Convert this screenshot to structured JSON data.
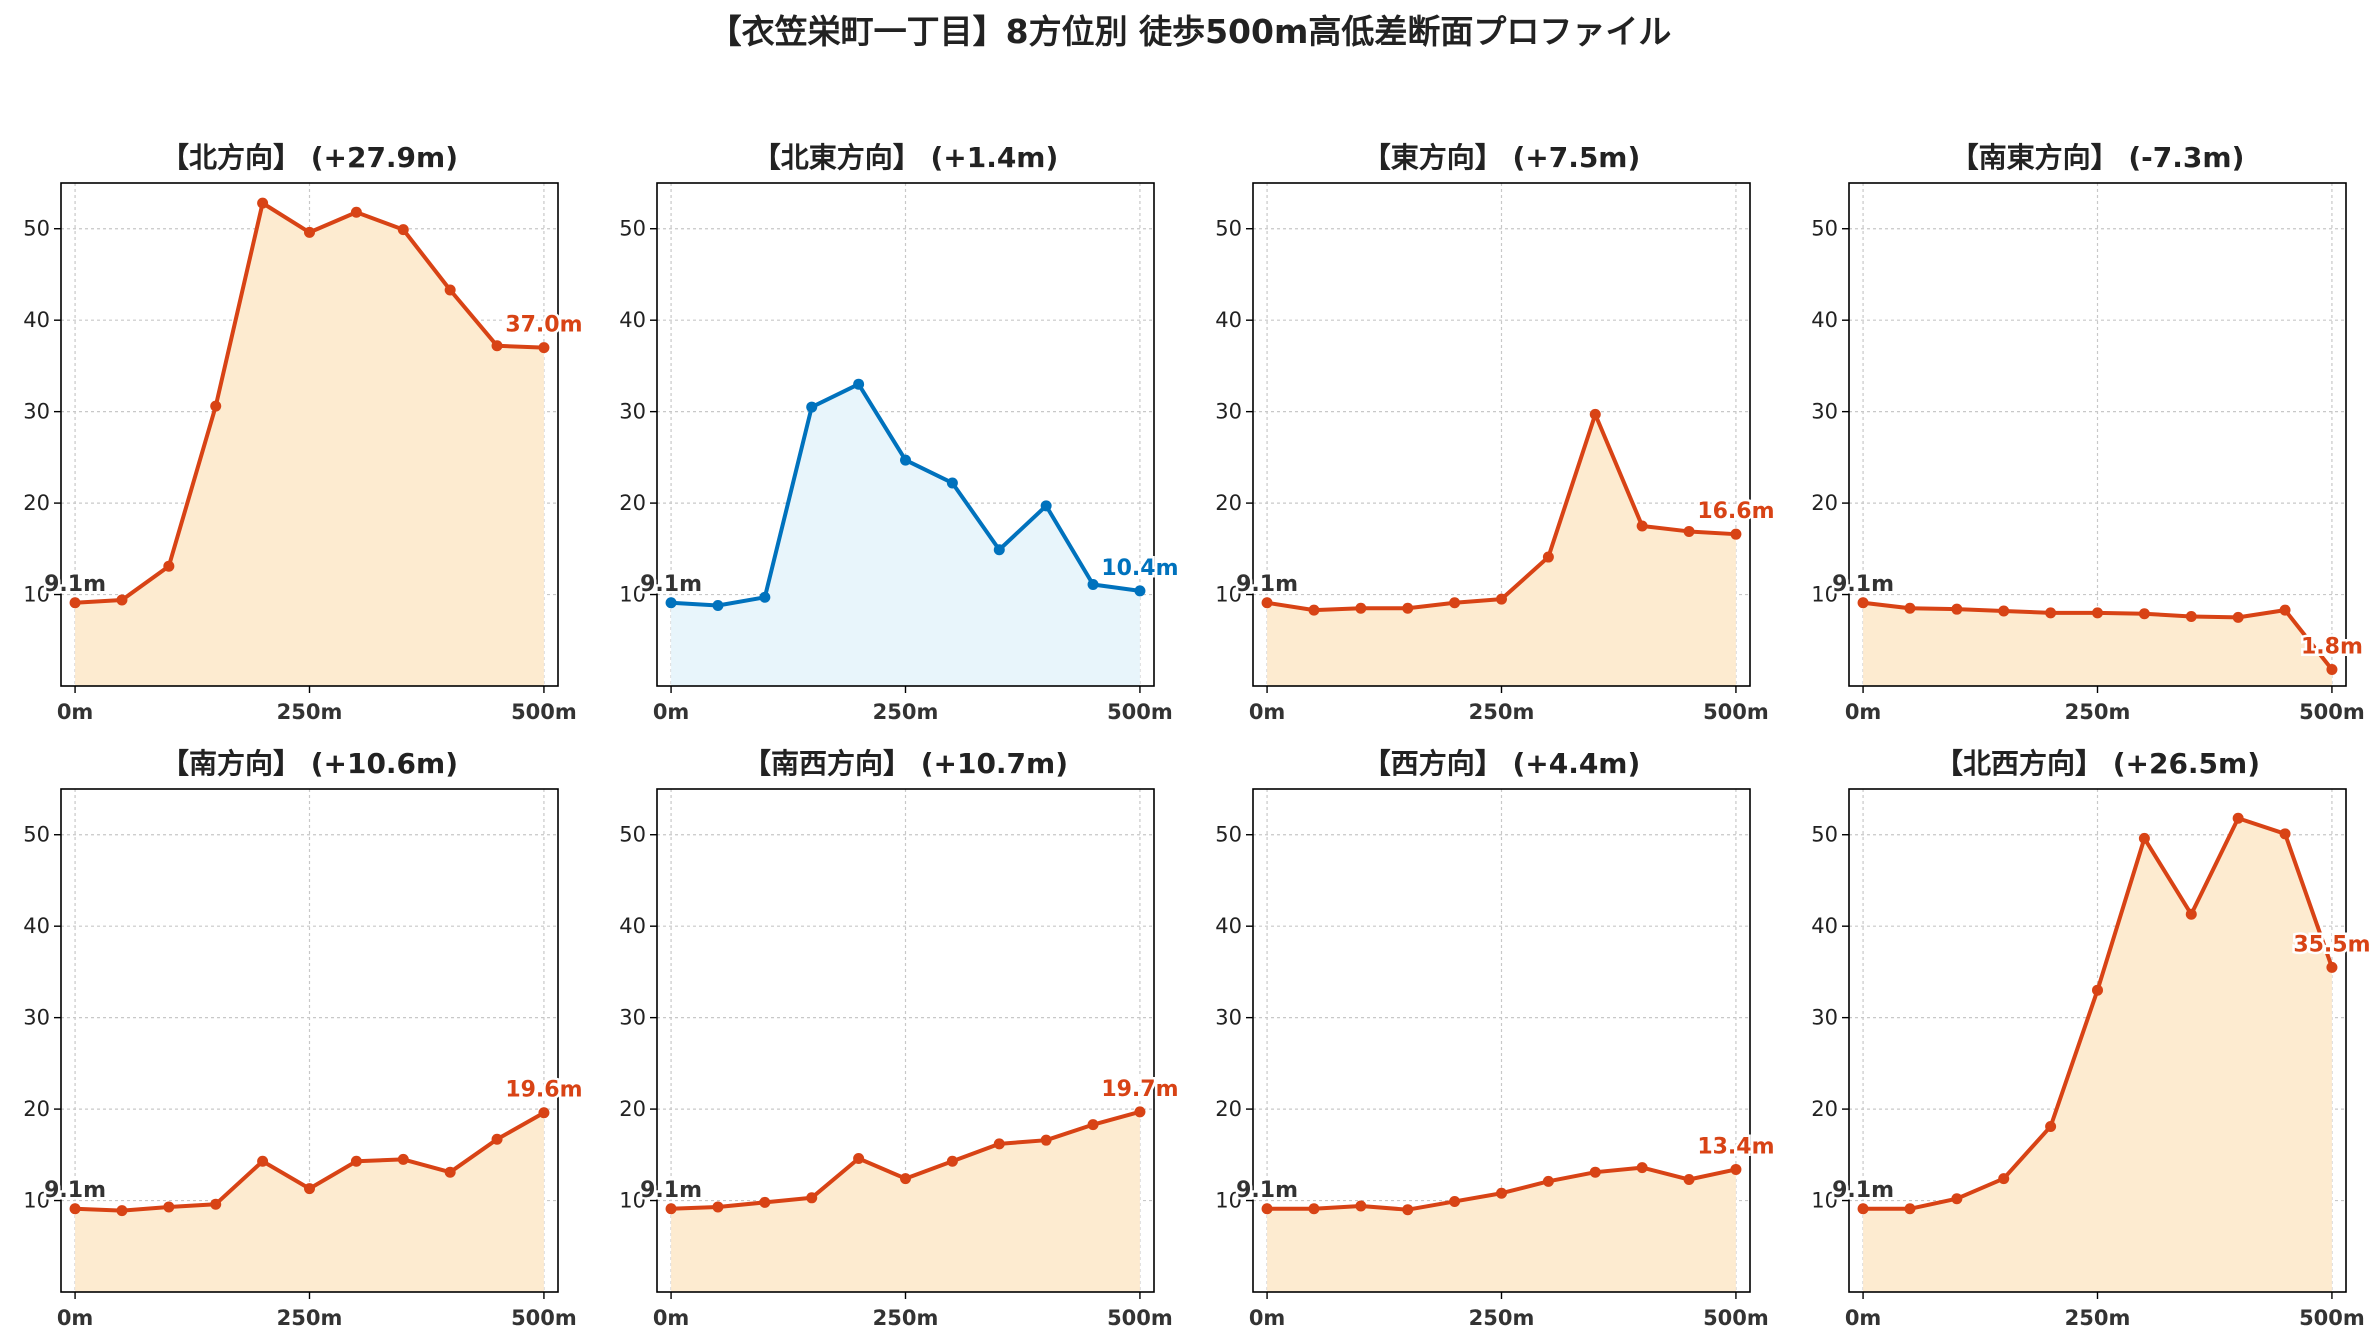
{
  "title": "【衣笠栄町一丁目】8方位別 徒歩500m高低差断面プロファイル",
  "colors": {
    "uphill_line": "#d84315",
    "uphill_fill": "#fdebd0",
    "downhill_line": "#0072bd",
    "downhill_fill": "#e8f5fb",
    "start_label": "#333333"
  },
  "chart_data": [
    {
      "type": "area",
      "title": "【北方向】 (+27.9m)",
      "style": "uphill",
      "x": [
        0,
        50,
        100,
        150,
        200,
        250,
        300,
        350,
        400,
        450,
        500
      ],
      "y": [
        9.1,
        9.4,
        13.1,
        30.6,
        52.8,
        49.6,
        51.8,
        49.9,
        43.3,
        37.2,
        37.0
      ],
      "start_label": "9.1m",
      "end_label": "37.0m",
      "xticks": [
        0,
        250,
        500
      ],
      "xtick_labels": [
        "0m",
        "250m",
        "500m"
      ],
      "yticks": [
        10,
        20,
        30,
        40,
        50
      ],
      "ylim": [
        0,
        55
      ],
      "xlim": [
        -15,
        515
      ],
      "grid": true
    },
    {
      "type": "area",
      "title": "【北東方向】 (+1.4m)",
      "style": "downhill",
      "x": [
        0,
        50,
        100,
        150,
        200,
        250,
        300,
        350,
        400,
        450,
        500
      ],
      "y": [
        9.1,
        8.8,
        9.7,
        30.5,
        33.0,
        24.7,
        22.2,
        14.9,
        19.7,
        11.1,
        10.4
      ],
      "start_label": "9.1m",
      "end_label": "10.4m",
      "xticks": [
        0,
        250,
        500
      ],
      "xtick_labels": [
        "0m",
        "250m",
        "500m"
      ],
      "yticks": [
        10,
        20,
        30,
        40,
        50
      ],
      "ylim": [
        0,
        55
      ],
      "xlim": [
        -15,
        515
      ],
      "grid": true
    },
    {
      "type": "area",
      "title": "【東方向】 (+7.5m)",
      "style": "uphill",
      "x": [
        0,
        50,
        100,
        150,
        200,
        250,
        300,
        350,
        400,
        450,
        500
      ],
      "y": [
        9.1,
        8.3,
        8.5,
        8.5,
        9.1,
        9.5,
        14.1,
        29.7,
        17.5,
        16.9,
        16.6
      ],
      "start_label": "9.1m",
      "end_label": "16.6m",
      "xticks": [
        0,
        250,
        500
      ],
      "xtick_labels": [
        "0m",
        "250m",
        "500m"
      ],
      "yticks": [
        10,
        20,
        30,
        40,
        50
      ],
      "ylim": [
        0,
        55
      ],
      "xlim": [
        -15,
        515
      ],
      "grid": true
    },
    {
      "type": "area",
      "title": "【南東方向】 (-7.3m)",
      "style": "uphill",
      "x": [
        0,
        50,
        100,
        150,
        200,
        250,
        300,
        350,
        400,
        450,
        500
      ],
      "y": [
        9.1,
        8.5,
        8.4,
        8.2,
        8.0,
        8.0,
        7.9,
        7.6,
        7.5,
        8.3,
        1.8
      ],
      "start_label": "9.1m",
      "end_label": "1.8m",
      "xticks": [
        0,
        250,
        500
      ],
      "xtick_labels": [
        "0m",
        "250m",
        "500m"
      ],
      "yticks": [
        10,
        20,
        30,
        40,
        50
      ],
      "ylim": [
        0,
        55
      ],
      "xlim": [
        -15,
        515
      ],
      "grid": true
    },
    {
      "type": "area",
      "title": "【南方向】 (+10.6m)",
      "style": "uphill",
      "x": [
        0,
        50,
        100,
        150,
        200,
        250,
        300,
        350,
        400,
        450,
        500
      ],
      "y": [
        9.1,
        8.9,
        9.3,
        9.6,
        14.3,
        11.3,
        14.3,
        14.5,
        13.1,
        16.7,
        19.6
      ],
      "start_label": "9.1m",
      "end_label": "19.6m",
      "xticks": [
        0,
        250,
        500
      ],
      "xtick_labels": [
        "0m",
        "250m",
        "500m"
      ],
      "yticks": [
        10,
        20,
        30,
        40,
        50
      ],
      "ylim": [
        0,
        55
      ],
      "xlim": [
        -15,
        515
      ],
      "grid": true
    },
    {
      "type": "area",
      "title": "【南西方向】 (+10.7m)",
      "style": "uphill",
      "x": [
        0,
        50,
        100,
        150,
        200,
        250,
        300,
        350,
        400,
        450,
        500
      ],
      "y": [
        9.1,
        9.3,
        9.8,
        10.3,
        14.6,
        12.4,
        14.3,
        16.2,
        16.6,
        18.3,
        19.7
      ],
      "start_label": "9.1m",
      "end_label": "19.7m",
      "xticks": [
        0,
        250,
        500
      ],
      "xtick_labels": [
        "0m",
        "250m",
        "500m"
      ],
      "yticks": [
        10,
        20,
        30,
        40,
        50
      ],
      "ylim": [
        0,
        55
      ],
      "xlim": [
        -15,
        515
      ],
      "grid": true
    },
    {
      "type": "area",
      "title": "【西方向】 (+4.4m)",
      "style": "uphill",
      "x": [
        0,
        50,
        100,
        150,
        200,
        250,
        300,
        350,
        400,
        450,
        500
      ],
      "y": [
        9.1,
        9.1,
        9.4,
        9.0,
        9.9,
        10.8,
        12.1,
        13.1,
        13.6,
        12.3,
        13.4
      ],
      "start_label": "9.1m",
      "end_label": "13.4m",
      "xticks": [
        0,
        250,
        500
      ],
      "xtick_labels": [
        "0m",
        "250m",
        "500m"
      ],
      "yticks": [
        10,
        20,
        30,
        40,
        50
      ],
      "ylim": [
        0,
        55
      ],
      "xlim": [
        -15,
        515
      ],
      "grid": true
    },
    {
      "type": "area",
      "title": "【北西方向】 (+26.5m)",
      "style": "uphill",
      "x": [
        0,
        50,
        100,
        150,
        200,
        250,
        300,
        350,
        400,
        450,
        500
      ],
      "y": [
        9.1,
        9.1,
        10.2,
        12.4,
        18.1,
        33.0,
        49.6,
        41.3,
        51.8,
        50.1,
        35.5
      ],
      "start_label": "9.1m",
      "end_label": "35.5m",
      "xticks": [
        0,
        250,
        500
      ],
      "xtick_labels": [
        "0m",
        "250m",
        "500m"
      ],
      "yticks": [
        10,
        20,
        30,
        40,
        50
      ],
      "ylim": [
        0,
        55
      ],
      "xlim": [
        -15,
        515
      ],
      "grid": true
    }
  ]
}
